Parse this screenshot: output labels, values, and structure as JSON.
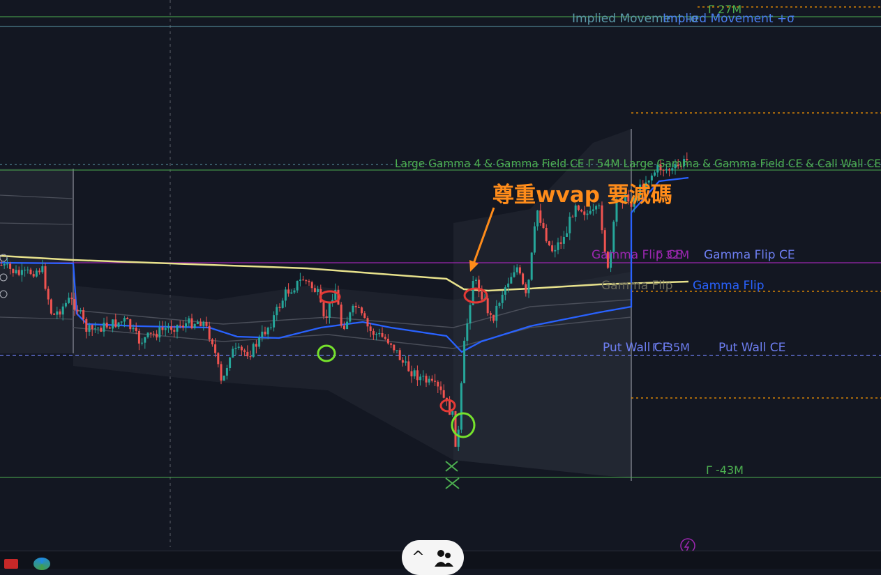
{
  "chart_data": {
    "type": "candlestick",
    "levels": [
      {
        "name": "Γ 27M",
        "kind": "gamma"
      },
      {
        "name": "Implied Movement -σ",
        "kind": "implied-movement"
      },
      {
        "name": "Implied Movement +σ",
        "kind": "implied-movement"
      },
      {
        "name": "Large Gamma 4 & Gamma Field CE",
        "kind": "gamma-field"
      },
      {
        "name": "Γ 54M",
        "kind": "gamma"
      },
      {
        "name": "Call Wall CE",
        "kind": "call-wall"
      },
      {
        "name": "Gamma Flip CE",
        "kind": "gamma-flip"
      },
      {
        "name": "Γ 32M",
        "kind": "gamma"
      },
      {
        "name": "Gamma Flip",
        "kind": "gamma-flip"
      },
      {
        "name": "Put Wall CE",
        "kind": "put-wall"
      },
      {
        "name": "Γ -35M",
        "kind": "gamma"
      },
      {
        "name": "Γ -43M",
        "kind": "gamma"
      }
    ],
    "labels": {
      "gamma_27m": "Γ 27M",
      "implied_minus": "Implied Movement -σ",
      "implied_plus": "Implied Movement +σ",
      "large_gamma_row": "Large Gamma 4 & Gamma Field CE  Γ 54M  Large Gamma & Gamma Field CE & Call Wall CE",
      "gamma_flip_ce": "Gamma Flip CE",
      "gamma_32m": "Γ 32M",
      "gamma_flip": "Gamma Flip",
      "gamma_flip_faded": "Gamma Flip",
      "put_wall_ce": "Put Wall CE",
      "gamma_neg35m": "Γ -35M",
      "gamma_neg43m": "Γ -43M"
    },
    "annotation": {
      "text": "尊重wvap 要減碼"
    },
    "markers": {
      "red_circles": 3,
      "green_circles": 2,
      "x_marks": 2
    }
  },
  "colors": {
    "background": "#131722",
    "bullish": "#26a69a",
    "bearish": "#ef5350",
    "vwap": "#2962ff",
    "gamma_flip_line": "#e8e28c",
    "gamma_green": "#4caf50",
    "purple": "#9c27b0",
    "put_wall": "#6e7ff3",
    "annotation": "#ff8c1a",
    "orange_dotted": "#ff9800"
  },
  "ui": {
    "overlay_chevron": "^",
    "overlay_icon": "people-icon"
  }
}
